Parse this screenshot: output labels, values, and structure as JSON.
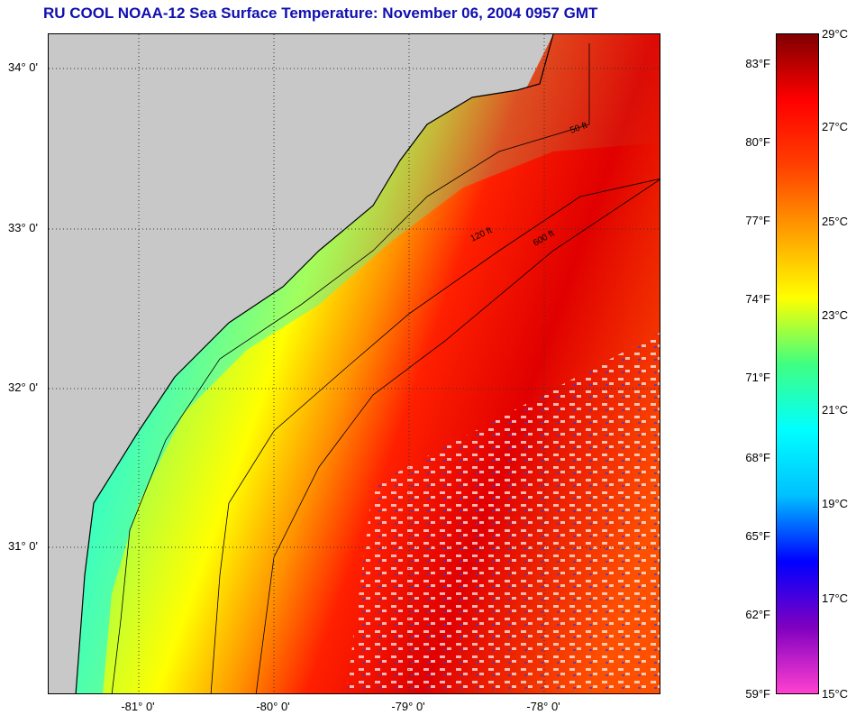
{
  "title": "RU COOL  NOAA-12  Sea Surface Temperature:  November 06, 2004 0957 GMT",
  "map": {
    "lat_labels": [
      "34° 0'",
      "33° 0'",
      "32° 0'",
      "31° 0'"
    ],
    "lon_labels": [
      "-81° 0'",
      "-80° 0'",
      "-79° 0'",
      "-78° 0'"
    ],
    "depth_contour_labels": [
      "50 ft",
      "120 ft",
      "600 ft"
    ],
    "land_color": "#c8c8c8"
  },
  "colorbar": {
    "fahrenheit_labels": [
      "83°F",
      "80°F",
      "77°F",
      "74°F",
      "71°F",
      "68°F",
      "65°F",
      "62°F",
      "59°F"
    ],
    "celsius_labels": [
      "29°C",
      "27°C",
      "25°C",
      "23°C",
      "21°C",
      "19°C",
      "17°C",
      "15°C"
    ],
    "range_c": [
      15,
      29
    ],
    "colors": [
      "#ff40d0",
      "#8000c0",
      "#0000ff",
      "#00c0ff",
      "#00ffff",
      "#40ff80",
      "#ffff00",
      "#ffa000",
      "#ff4000",
      "#ff0000",
      "#800000"
    ]
  }
}
